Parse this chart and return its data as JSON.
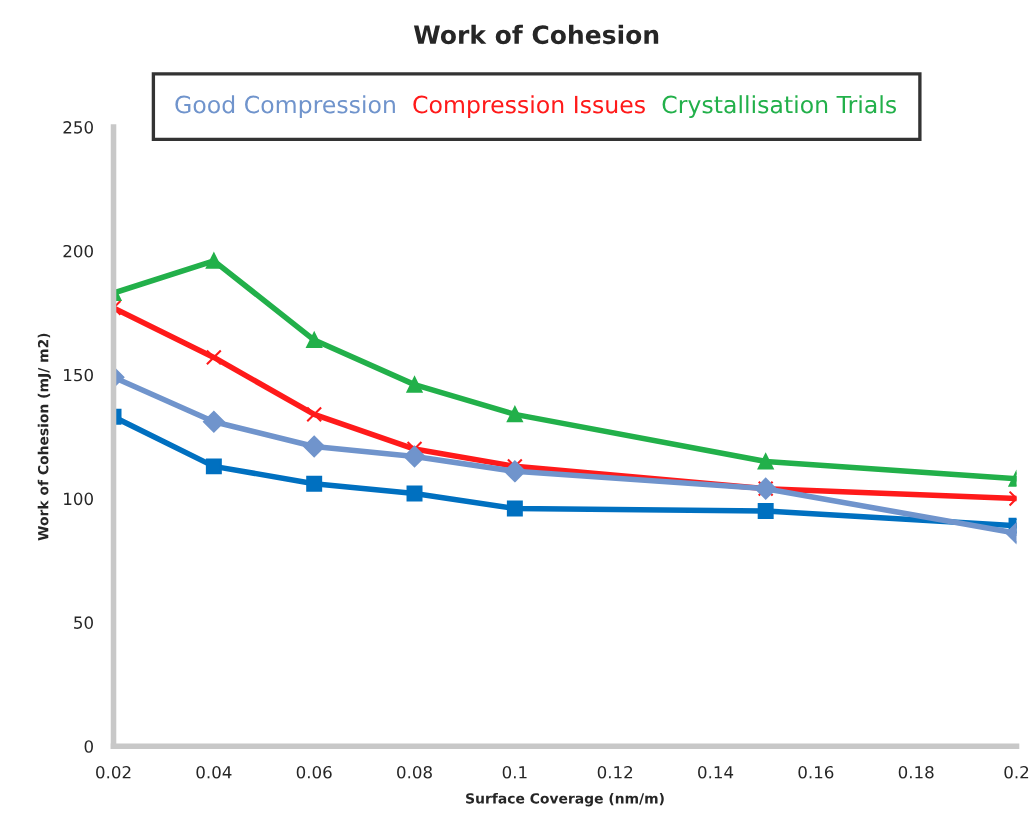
{
  "chart_data": {
    "type": "line",
    "title": "Work of Cohesion",
    "xlabel": "Surface Coverage (nm/m)",
    "ylabel": "Work of Cohesion (mJ/ m2)",
    "x": [
      0.02,
      0.04,
      0.06,
      0.08,
      0.1,
      0.15,
      0.2
    ],
    "series": [
      {
        "color": "#0070c0",
        "marker": "square",
        "values": [
          133,
          113,
          106,
          102,
          96,
          95,
          89
        ]
      },
      {
        "name": "Compression Issues",
        "color": "#ff1a1a",
        "marker": "cross",
        "values": [
          177,
          157,
          134,
          120,
          113,
          104,
          100
        ]
      },
      {
        "name": "Crystallisation Trials",
        "color": "#22b04a",
        "marker": "triangle",
        "values": [
          183,
          196,
          164,
          146,
          134,
          115,
          108
        ]
      },
      {
        "name": "Good Compression",
        "color": "#7094cc",
        "marker": "diamond",
        "values": [
          149,
          131,
          121,
          117,
          111,
          104,
          86
        ]
      }
    ],
    "xlim": [
      0.02,
      0.2
    ],
    "xticks": [
      0.02,
      0.04,
      0.06,
      0.08,
      0.1,
      0.12,
      0.14,
      0.16,
      0.18,
      0.2
    ],
    "ylim": [
      0,
      250
    ],
    "yticks": [
      0,
      50,
      100,
      150,
      200,
      250
    ],
    "grid": false,
    "legend": "top",
    "line_style": "solid"
  }
}
